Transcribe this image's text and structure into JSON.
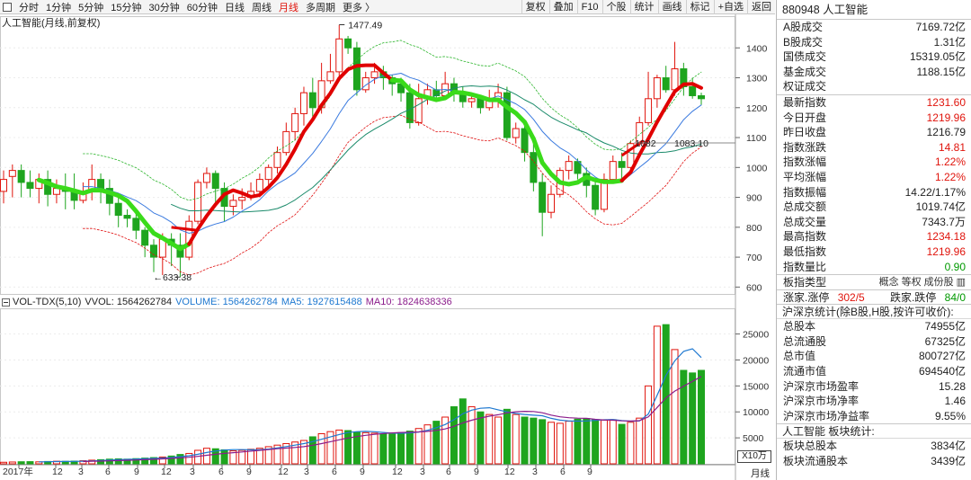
{
  "toolbar": {
    "periods": [
      "分时",
      "1分钟",
      "5分钟",
      "15分钟",
      "30分钟",
      "60分钟",
      "日线",
      "周线",
      "月线",
      "多周期",
      "更多 〉"
    ],
    "active_period": "月线",
    "buttons": [
      "复权",
      "叠加",
      "F10",
      "个股",
      "统计",
      "画线",
      "标记",
      "+自选",
      "返回"
    ]
  },
  "chart_title": "人工智能(月线,前复权)",
  "price_axis": [
    "1400",
    "1300",
    "1200",
    "1100",
    "1000",
    "900",
    "800",
    "700",
    "600"
  ],
  "price_annotations": {
    "high": "1477.49",
    "low": "633.38",
    "left_mark": "1082",
    "right_mark": "1083.10"
  },
  "volume_header": {
    "indicator": "VOL-TDX(5,10)",
    "vvol": "VVOL: 1564262784",
    "volume": "VOLUME: 1564262784",
    "ma5": "MA5: 1927615488",
    "ma10": "MA10: 1824638336",
    "colors": {
      "volume": "#1e78d0",
      "ma5": "#1e78d0",
      "ma10": "#8b1c8b"
    }
  },
  "volume_axis": [
    "25000",
    "20000",
    "15000",
    "10000",
    "5000"
  ],
  "volume_unit": "X10万",
  "period_tag": "月线",
  "x_axis": [
    "2017年",
    "12",
    "3",
    "6",
    "9",
    "12",
    "3",
    "6",
    "9",
    "12",
    "3",
    "6",
    "9",
    "12",
    "3",
    "6",
    "9",
    "12",
    "3",
    "6",
    "9"
  ],
  "colors": {
    "up": "#e0140c",
    "down": "#1ea51e",
    "overlay_green": "#3adb1a",
    "overlay_red": "#e00000"
  },
  "panel": {
    "header": "880948  人工智能",
    "rows_a": [
      {
        "label": "A股成交",
        "value": "7169.72亿",
        "color": ""
      },
      {
        "label": "B股成交",
        "value": "1.31亿",
        "color": ""
      },
      {
        "label": "国债成交",
        "value": "15319.05亿",
        "color": ""
      },
      {
        "label": "基金成交",
        "value": "1188.15亿",
        "color": ""
      },
      {
        "label": "权证成交",
        "value": "",
        "color": ""
      }
    ],
    "rows_b": [
      {
        "label": "最新指数",
        "value": "1231.60",
        "color": "red"
      },
      {
        "label": "今日开盘",
        "value": "1219.96",
        "color": "red"
      },
      {
        "label": "昨日收盘",
        "value": "1216.79",
        "color": ""
      },
      {
        "label": "指数涨跌",
        "value": "14.81",
        "color": "red"
      },
      {
        "label": "指数涨幅",
        "value": "1.22%",
        "color": "red"
      },
      {
        "label": "平均涨幅",
        "value": "1.22%",
        "color": "red"
      },
      {
        "label": "指数振幅",
        "value": "14.22/1.17%",
        "color": ""
      },
      {
        "label": "总成交额",
        "value": "1019.74亿",
        "color": ""
      },
      {
        "label": "总成交量",
        "value": "7343.7万",
        "color": ""
      },
      {
        "label": "最高指数",
        "value": "1234.18",
        "color": "red"
      },
      {
        "label": "最低指数",
        "value": "1219.96",
        "color": "red"
      },
      {
        "label": "指数量比",
        "value": "0.90",
        "color": "green"
      }
    ],
    "board_type_label": "板指类型",
    "board_type_pills": [
      "概念",
      "等权",
      "成份股",
      "▥"
    ],
    "limit_row": {
      "up_label": "涨家.涨停",
      "up_value": "302/5",
      "down_label": "跌家.跌停",
      "down_value": "84/0"
    },
    "stats_title": "沪深京统计(除B股,H股,按许可收价):",
    "rows_c": [
      {
        "label": "总股本",
        "value": "74955亿"
      },
      {
        "label": "总流通股",
        "value": "67325亿"
      },
      {
        "label": "总市值",
        "value": "800727亿"
      },
      {
        "label": "流通市值",
        "value": "694540亿"
      },
      {
        "label": "沪深京市场盈率",
        "value": "15.28"
      },
      {
        "label": "沪深京市场净率",
        "value": "1.46"
      },
      {
        "label": "沪深京市场净益率",
        "value": "9.55%"
      }
    ],
    "board_stats_title": "人工智能 板块统计:",
    "rows_d": [
      {
        "label": "板块总股本",
        "value": "3834亿"
      },
      {
        "label": "板块流通股本",
        "value": "3439亿"
      }
    ]
  }
}
